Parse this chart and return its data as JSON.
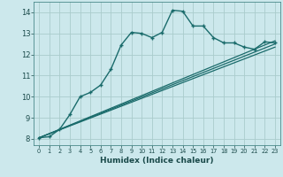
{
  "xlabel": "Humidex (Indice chaleur)",
  "background_color": "#cce8ec",
  "grid_color": "#aacccc",
  "line_color": "#1a6b6b",
  "xlim": [
    -0.5,
    23.5
  ],
  "ylim": [
    7.7,
    14.5
  ],
  "yticks": [
    8,
    9,
    10,
    11,
    12,
    13,
    14
  ],
  "xticks": [
    0,
    1,
    2,
    3,
    4,
    5,
    6,
    7,
    8,
    9,
    10,
    11,
    12,
    13,
    14,
    15,
    16,
    17,
    18,
    19,
    20,
    21,
    22,
    23
  ],
  "main_x": [
    0,
    1,
    2,
    3,
    4,
    5,
    6,
    7,
    8,
    9,
    10,
    11,
    12,
    13,
    14,
    15,
    16,
    17,
    18,
    19,
    20,
    21,
    22,
    23
  ],
  "main_y": [
    8.05,
    8.1,
    8.45,
    9.15,
    10.0,
    10.2,
    10.55,
    11.3,
    12.45,
    13.05,
    13.0,
    12.8,
    13.05,
    14.1,
    14.05,
    13.35,
    13.35,
    12.8,
    12.55,
    12.55,
    12.35,
    12.25,
    12.6,
    12.55
  ],
  "line2_x": [
    0,
    23
  ],
  "line2_y": [
    8.05,
    12.65
  ],
  "line3_x": [
    0,
    23
  ],
  "line3_y": [
    8.05,
    12.5
  ],
  "line4_x": [
    0,
    23
  ],
  "line4_y": [
    8.05,
    12.35
  ]
}
